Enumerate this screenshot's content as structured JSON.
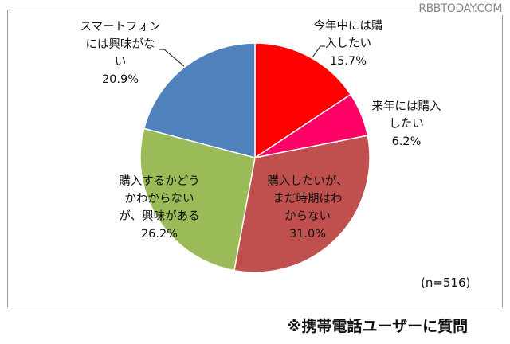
{
  "chart_data": {
    "type": "pie",
    "start": "top",
    "direction": "clockwise",
    "slices": [
      {
        "label": [
          "今年中には購",
          "入したい"
        ],
        "value": 15.7,
        "value_label": "15.7%",
        "color": "#ff0000"
      },
      {
        "label": [
          "来年には購入",
          "したい"
        ],
        "value": 6.2,
        "value_label": "6.2%",
        "color": "#ff0066"
      },
      {
        "label": [
          "購入したいが、",
          "まだ時期はわ",
          "からない"
        ],
        "value": 31.0,
        "value_label": "31.0%",
        "color": "#c0504d"
      },
      {
        "label": [
          "購入するかどう",
          "かわからない",
          "が、興味がある"
        ],
        "value": 26.2,
        "value_label": "26.2%",
        "color": "#9bbb59"
      },
      {
        "label": [
          "スマートフォン",
          "には興味がな",
          "い"
        ],
        "value": 20.9,
        "value_label": "20.9%",
        "color": "#4f81bd"
      }
    ],
    "sample_size": "(n=516)"
  },
  "footnote": "※携帯電話ユーザーに質問",
  "watermark": "RBBTODAY.COM"
}
